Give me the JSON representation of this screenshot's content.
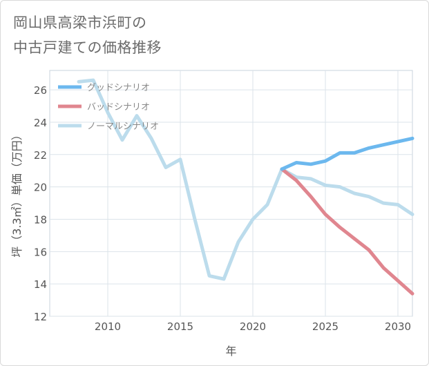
{
  "title_lines": [
    "岡山県高梁市浜町の",
    "中古戸建ての価格推移"
  ],
  "chart_data": {
    "type": "line",
    "title": "岡山県高梁市浜町の中古戸建ての価格推移",
    "xlabel": "年",
    "ylabel": "坪（3.3㎡）単価（万円）",
    "xlim": [
      2006,
      2031
    ],
    "ylim": [
      12,
      27.2
    ],
    "xticks": [
      2010,
      2015,
      2020,
      2025,
      2030
    ],
    "yticks": [
      12,
      14,
      16,
      18,
      20,
      22,
      24,
      26
    ],
    "grid": true,
    "legend_position": "top-left",
    "series": [
      {
        "name": "グッドシナリオ",
        "color": "#6cb8ee",
        "x": [
          2022,
          2023,
          2024,
          2025,
          2026,
          2027,
          2028,
          2029,
          2030,
          2031
        ],
        "values": [
          21.1,
          21.5,
          21.4,
          21.6,
          22.1,
          22.1,
          22.4,
          22.6,
          22.8,
          23.0
        ]
      },
      {
        "name": "バッドシナリオ",
        "color": "#e0868f",
        "x": [
          2022,
          2023,
          2024,
          2025,
          2026,
          2027,
          2028,
          2029,
          2030,
          2031
        ],
        "values": [
          21.1,
          20.4,
          19.4,
          18.3,
          17.5,
          16.8,
          16.1,
          15.0,
          14.2,
          13.4
        ]
      },
      {
        "name": "ノーマルシナリオ",
        "color": "#bcdcec",
        "x": [
          2008,
          2009,
          2010,
          2011,
          2012,
          2013,
          2014,
          2015,
          2016,
          2017,
          2018,
          2019,
          2020,
          2021,
          2022,
          2023,
          2024,
          2025,
          2026,
          2027,
          2028,
          2029,
          2030,
          2031
        ],
        "values": [
          26.5,
          26.6,
          24.6,
          22.9,
          24.4,
          23.0,
          21.2,
          21.7,
          18.0,
          14.5,
          14.3,
          16.6,
          18.0,
          18.9,
          21.1,
          20.6,
          20.5,
          20.1,
          20.0,
          19.6,
          19.4,
          19.0,
          18.9,
          18.3
        ]
      }
    ]
  }
}
